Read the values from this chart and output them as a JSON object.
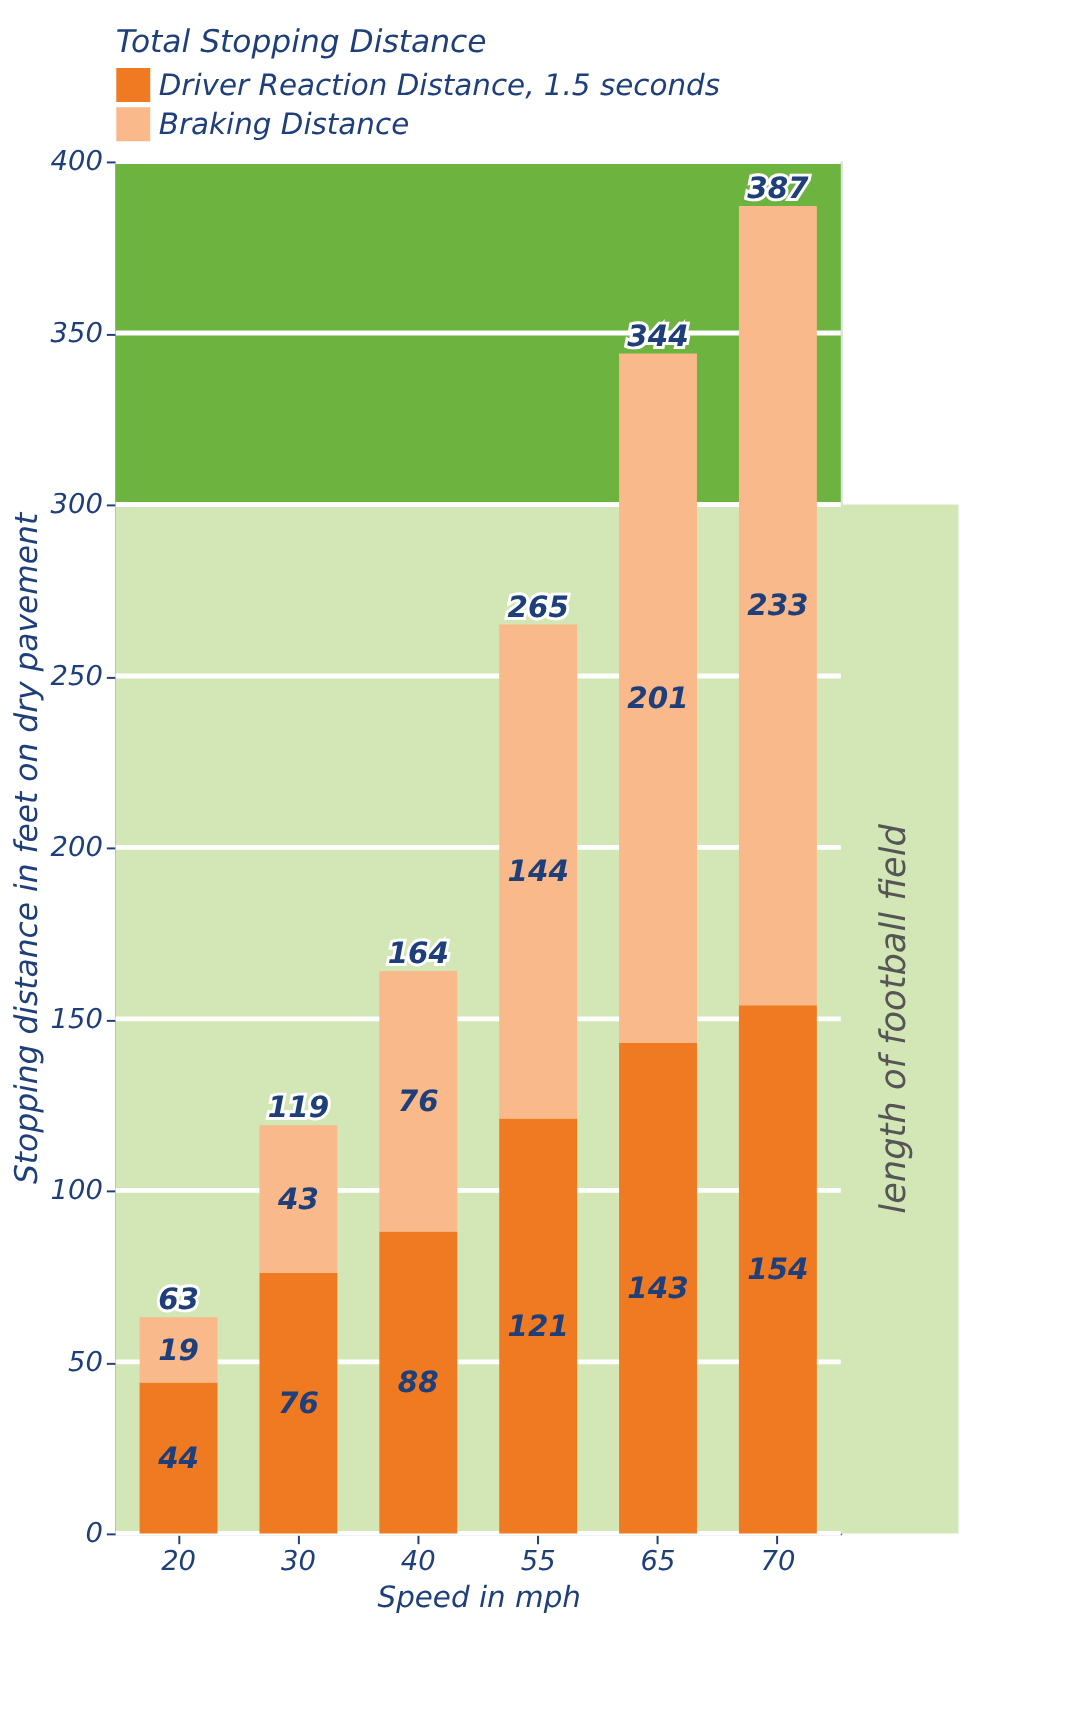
{
  "chart_data": {
    "type": "bar",
    "stacked": true,
    "xlabel": "Speed in mph",
    "ylabel": "Stopping distance in feet on dry pavement",
    "legend_title": "Total Stopping Distance",
    "legend": "top left",
    "categories": [
      "20",
      "30",
      "40",
      "55",
      "65",
      "70"
    ],
    "series": [
      {
        "name": "Driver Reaction Distance, 1.5 seconds",
        "color": "#f07a22",
        "values": [
          44,
          76,
          88,
          121,
          143,
          154
        ]
      },
      {
        "name": "Braking Distance",
        "color": "#f9b98a",
        "values": [
          19,
          43,
          76,
          144,
          201,
          233
        ]
      }
    ],
    "totals": [
      "63",
      "119",
      "164",
      "265",
      "344",
      "387"
    ],
    "data_labels": true,
    "ylim": [
      0,
      400
    ],
    "yticks": [
      0,
      50,
      100,
      150,
      200,
      250,
      300,
      350,
      400
    ],
    "grid": "y",
    "bands": [
      {
        "axis": "y",
        "from": 300,
        "to": 400,
        "color": "#6db33f"
      },
      {
        "axis": "y",
        "from": 0,
        "to": 300,
        "color": "#d3e6b5",
        "label": "length of football field"
      }
    ]
  }
}
